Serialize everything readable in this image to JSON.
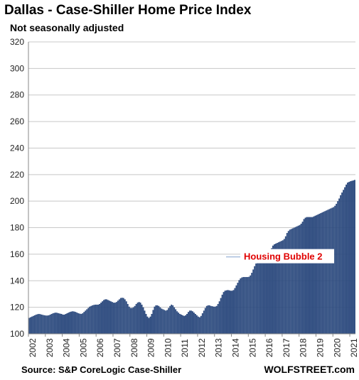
{
  "chart_data": {
    "type": "bar",
    "title": "Dallas - Case-Shiller Home Price Index",
    "subtitle": "Not seasonally adjusted",
    "source": "Source: S&P CoreLogic Case-Shiller",
    "brand": "WOLFSTREET.com",
    "annotation": "Housing Bubble 2",
    "ylim": [
      100,
      320
    ],
    "yticks": [
      100,
      120,
      140,
      160,
      180,
      200,
      220,
      240,
      260,
      280,
      300,
      320
    ],
    "xtick_labels": [
      "2002",
      "2003",
      "2004",
      "2005",
      "2006",
      "2007",
      "2008",
      "2009",
      "2010",
      "2011",
      "2012",
      "2013",
      "2014",
      "2015",
      "2016",
      "2017",
      "2018",
      "2019",
      "2020",
      "2021"
    ],
    "grid": true,
    "bar_color": "#2c4a7e",
    "frequency": "monthly",
    "start": "2002-01",
    "end": "2021-04",
    "series": [
      {
        "values": [
          112,
          112.5,
          113,
          113.5,
          114,
          114.5,
          114.8,
          115,
          114.8,
          114.5,
          114.2,
          114,
          113.8,
          113.8,
          114,
          114.5,
          115,
          115.5,
          115.8,
          116,
          115.8,
          115.5,
          115.2,
          115,
          114.5,
          114.5,
          115,
          115.5,
          116,
          116.5,
          116.8,
          117,
          116.8,
          116.5,
          116,
          115.5,
          115.2,
          115,
          115.5,
          116.5,
          117.5,
          118.5,
          119.5,
          120.5,
          121,
          121.5,
          121.8,
          122,
          122,
          122,
          122.5,
          123.5,
          124.5,
          125.5,
          126,
          126,
          125.5,
          125,
          124.5,
          124,
          123.5,
          123.5,
          124,
          125,
          126,
          127,
          127.2,
          127,
          126,
          124.5,
          122.5,
          120.5,
          119.5,
          119.5,
          120,
          121,
          122.5,
          123.5,
          124,
          123.5,
          122,
          120,
          117.5,
          115,
          113,
          112,
          113,
          115,
          118,
          120.5,
          121.5,
          121.5,
          121,
          120,
          119,
          118.5,
          118,
          117.5,
          118,
          119.5,
          121,
          122,
          121.5,
          120,
          118.5,
          117,
          116,
          115,
          114.5,
          114,
          113.5,
          114,
          115,
          116.5,
          117.5,
          117.5,
          117,
          116,
          115,
          114,
          113,
          112.5,
          113.5,
          115.5,
          117.5,
          119.5,
          121,
          121.5,
          121.5,
          121,
          120.8,
          120.5,
          120.5,
          121,
          122.5,
          124.5,
          127,
          129.5,
          131.5,
          132.5,
          132.8,
          133,
          132.8,
          132.5,
          132.5,
          133,
          134.5,
          136.5,
          138.5,
          140.5,
          141.8,
          142.5,
          142.8,
          142.8,
          142.8,
          142.8,
          143,
          144,
          146,
          148.5,
          151,
          153,
          154.5,
          155.5,
          155.8,
          156,
          156,
          156,
          156.5,
          157.5,
          159.5,
          162,
          164.5,
          166.5,
          167.5,
          168,
          168.5,
          169,
          169.5,
          170,
          170.5,
          171.5,
          173.5,
          176,
          177.5,
          178.5,
          179,
          179.5,
          180,
          180.5,
          181,
          181.5,
          182,
          183,
          184.5,
          186.5,
          187.5,
          188,
          188,
          188,
          188,
          188,
          188.5,
          189,
          189.5,
          190,
          190.5,
          191,
          191.5,
          192,
          192.5,
          193,
          193.5,
          194,
          194.5,
          195,
          195.5,
          196.5,
          198,
          200,
          202,
          204.5,
          206.5,
          208.5,
          210.5,
          212.5,
          214,
          214.5,
          215,
          215.3,
          215.6,
          216
        ]
      }
    ]
  }
}
